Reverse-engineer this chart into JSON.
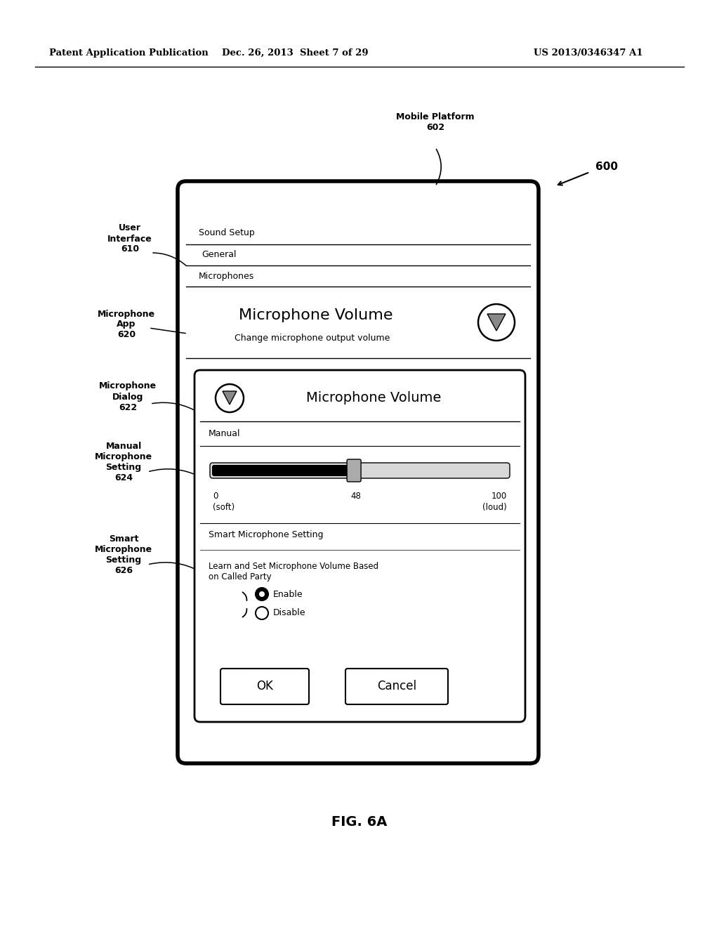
{
  "bg_color": "#ffffff",
  "header_left": "Patent Application Publication",
  "header_mid": "Dec. 26, 2013  Sheet 7 of 29",
  "header_right": "US 2013/0346347 A1",
  "fig_label": "FIG. 6A",
  "ref_600": "600",
  "label_mobile_platform": "Mobile Platform\n602",
  "label_user_interface": "User\nInterface\n610",
  "label_microphone_app": "Microphone\nApp\n620",
  "label_microphone_dialog": "Microphone\nDialog\n622",
  "label_manual_micro": "Manual\nMicrophone\nSetting\n624",
  "label_smart_micro": "Smart\nMicrophone\nSetting\n626",
  "text_sound_setup": "Sound Setup",
  "text_general": "General",
  "text_microphones": "Microphones",
  "text_microphone_volume_big": "Microphone Volume",
  "text_change_micro": "Change microphone output volume",
  "text_microphone_volume_dialog": "Microphone Volume",
  "text_manual": "Manual",
  "text_slider_0": "0",
  "text_slider_soft": "(soft)",
  "text_slider_48": "48",
  "text_slider_100": "100",
  "text_slider_loud": "(loud)",
  "text_smart_micro_setting": "Smart Microphone Setting",
  "text_learn_set": "Learn and Set Microphone Volume Based\non Called Party",
  "text_enable": "Enable",
  "text_disable": "Disable",
  "text_ok": "OK",
  "text_cancel": "Cancel"
}
